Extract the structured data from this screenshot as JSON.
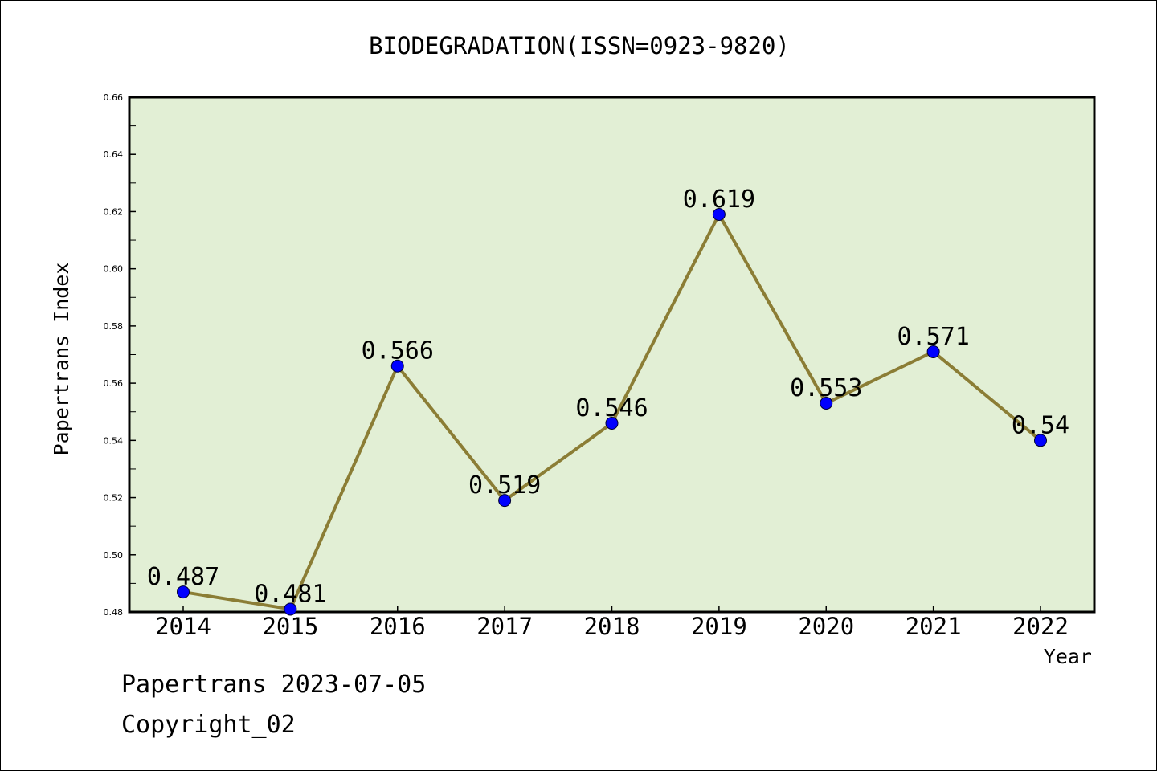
{
  "chart_data": {
    "type": "line",
    "title": "BIODEGRADATION(ISSN=0923-9820)",
    "xlabel": "Year",
    "ylabel": "Papertrans Index",
    "categories": [
      "2014",
      "2015",
      "2016",
      "2017",
      "2018",
      "2019",
      "2020",
      "2021",
      "2022"
    ],
    "series": [
      {
        "values": [
          0.487,
          0.481,
          0.566,
          0.519,
          0.546,
          0.619,
          0.553,
          0.571,
          0.54
        ],
        "labels": [
          "0.487",
          "0.481",
          "0.566",
          "0.519",
          "0.546",
          "0.619",
          "0.553",
          "0.571",
          "0.54"
        ]
      }
    ],
    "ylim": [
      0.48,
      0.66
    ],
    "yticks": [
      "0.48",
      "0.50",
      "0.52",
      "0.54",
      "0.56",
      "0.58",
      "0.60",
      "0.62",
      "0.64",
      "0.66"
    ],
    "grid": false,
    "colors": {
      "plot_background": "#e2efd5",
      "line": "#8b7d35",
      "marker": "#0000ff"
    }
  },
  "footer": {
    "line1": "Papertrans 2023-07-05",
    "line2": "Copyright_02"
  }
}
